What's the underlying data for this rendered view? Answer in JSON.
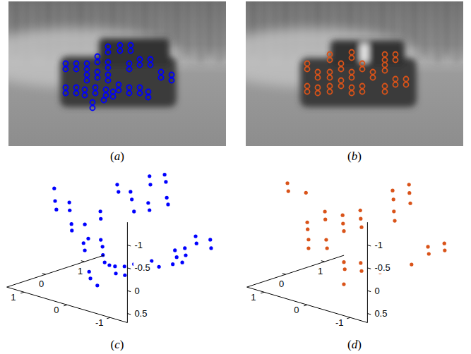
{
  "chart_data": [
    {
      "type": "image",
      "title": "(a)",
      "color": "#0000ff",
      "marker": "ring",
      "xlim": [
        0,
        308
      ],
      "ylim": [
        0,
        205
      ],
      "x": [
        81,
        81,
        81,
        81,
        96,
        96,
        96,
        96,
        111,
        111,
        111,
        111,
        108,
        108,
        126,
        126,
        126,
        126,
        123,
        123,
        119,
        119,
        141,
        141,
        141,
        141,
        141,
        141,
        138,
        138,
        135,
        158,
        158,
        156,
        156,
        173,
        173,
        171,
        171,
        171,
        171,
        186,
        186,
        186,
        186,
        201,
        201,
        198,
        198,
        216,
        216,
        231,
        231,
        148,
        148
      ],
      "y": [
        88,
        96,
        122,
        130,
        88,
        96,
        122,
        130,
        88,
        96,
        104,
        112,
        125,
        133,
        78,
        86,
        100,
        108,
        122,
        130,
        143,
        151,
        64,
        72,
        86,
        94,
        104,
        112,
        125,
        133,
        140,
        62,
        70,
        118,
        126,
        62,
        70,
        122,
        130,
        88,
        96,
        82,
        90,
        122,
        130,
        82,
        90,
        128,
        136,
        100,
        108,
        104,
        112,
        128,
        135
      ]
    },
    {
      "type": "image",
      "title": "(b)",
      "color": "#d95319",
      "marker": "ring",
      "xlim": [
        0,
        308
      ],
      "ylim": [
        0,
        205
      ],
      "x": [
        87,
        87,
        87,
        87,
        102,
        102,
        102,
        102,
        119,
        119,
        119,
        119,
        119,
        119,
        135,
        135,
        135,
        135,
        150,
        150,
        150,
        150,
        150,
        150,
        165,
        165,
        165,
        165,
        180,
        180,
        197,
        197,
        197,
        197,
        197,
        197,
        212,
        212,
        212,
        212,
        227,
        227
      ],
      "y": [
        88,
        96,
        120,
        128,
        100,
        108,
        122,
        130,
        75,
        83,
        100,
        108,
        120,
        128,
        88,
        96,
        112,
        120,
        72,
        80,
        100,
        108,
        122,
        130,
        88,
        96,
        120,
        128,
        100,
        108,
        75,
        83,
        90,
        98,
        120,
        128,
        75,
        83,
        110,
        118,
        110,
        118
      ]
    },
    {
      "type": "scatter3d",
      "title": "(c)",
      "color": "#0000ff",
      "marker": "dot",
      "xlim": [
        -1.4,
        1.4
      ],
      "ylim": [
        -1,
        1.5
      ],
      "zlim": [
        -1.5,
        0.7
      ],
      "xticks": [
        1,
        0,
        -1
      ],
      "yticks": [
        0,
        1
      ],
      "zticks": [
        -1,
        -0.5,
        0,
        0.5
      ],
      "x": [
        1.2,
        1.18,
        1.15,
        0.85,
        0.84,
        0.8,
        0.79,
        0.49,
        0.52,
        0.49,
        0.41,
        0.36,
        0.39,
        0.58,
        0.57,
        0.57,
        0.53,
        0.52,
        0.48,
        0.2,
        0.24,
        0.22,
        0.37,
        0.02,
        0.01,
        -0.2,
        0.64,
        0.61,
        0.33,
        0.3,
        0.25,
        0.34,
        0.32,
        -0.08,
        -0.11,
        -0.01,
        -0.04,
        -0.06,
        -0.09,
        -0.16,
        -0.33,
        -0.25,
        -0.29,
        -0.48,
        -0.5,
        -0.73,
        -0.75,
        -1.07,
        -1.09,
        -0.2,
        -0.42
      ],
      "y": [
        0,
        0,
        0,
        0,
        0,
        0,
        0,
        0,
        0,
        0,
        0,
        0,
        0,
        0.5,
        0.5,
        0.5,
        0.5,
        0.5,
        0.5,
        0,
        0.5,
        0.5,
        0.5,
        0.5,
        0.5,
        0.5,
        1,
        1,
        1,
        1,
        1,
        1.5,
        1.5,
        1,
        1,
        1.5,
        1.5,
        1.5,
        1.5,
        1,
        1,
        1.5,
        1.5,
        1.5,
        1.5,
        1.5,
        1.5,
        1.5,
        1.5,
        1.5,
        1.5
      ],
      "z": [
        -1.24,
        -0.97,
        -0.79,
        -1.03,
        -0.86,
        -0.57,
        -0.43,
        -0.65,
        -0.23,
        -0.08,
        -0.36,
        0.5,
        0.36,
        -0.77,
        -0.61,
        -0.15,
        -0.01,
        0.17,
        0.32,
        0.61,
        0.34,
        0.49,
        0.35,
        0.28,
        0.47,
        0.17,
        -1.2,
        -1.05,
        -1.13,
        -0.97,
        -0.72,
        -1.33,
        -1.15,
        -1,
        -0.85,
        -1.46,
        -1.31,
        -0.97,
        -0.83,
        0.25,
        0.33,
        0.13,
        0.27,
        0.02,
        0.17,
        -0.31,
        -0.16,
        -0.33,
        -0.15,
        0.45,
        0.35
      ]
    },
    {
      "type": "scatter3d",
      "title": "(d)",
      "color": "#d95319",
      "marker": "dot",
      "xlim": [
        -1.4,
        1.4
      ],
      "ylim": [
        -1,
        1.5
      ],
      "zlim": [
        -1.5,
        0.7
      ],
      "xticks": [
        1,
        0,
        -1
      ],
      "yticks": [
        0,
        1
      ],
      "zticks": [
        -1,
        -0.5,
        0,
        0.5
      ],
      "x": [
        1.36,
        1.34,
        0.93,
        0.9,
        0.89,
        0.87,
        0.87,
        0.49,
        0.48,
        0.46,
        0.44,
        0.53,
        0.52,
        0.5,
        0.12,
        0.11,
        0.09,
        0.5,
        0.48,
        0.05,
        0.11,
        0.09,
        -0.32,
        -0.34,
        -0.18,
        -0.2,
        -0.21,
        -0.23,
        -0.11,
        -0.12,
        -0.14,
        -0.62,
        -0.55,
        -0.57,
        -0.93,
        -0.94
      ],
      "y": [
        0,
        0,
        0,
        0,
        0,
        0,
        0,
        0,
        0,
        0,
        0,
        0.5,
        0.5,
        0.5,
        0.5,
        0.5,
        0.5,
        0.5,
        0.5,
        0,
        0.5,
        0.5,
        0.5,
        0.5,
        1,
        1,
        1,
        1,
        1.5,
        1.5,
        1.5,
        1,
        1.5,
        1.5,
        1.5,
        1.5
      ],
      "z": [
        -1.31,
        -1.14,
        -1.22,
        -0.58,
        -0.43,
        -0.21,
        -0.02,
        -0.93,
        -0.76,
        -0.32,
        -0.14,
        -0.7,
        -0.52,
        -0.36,
        -0.92,
        -0.74,
        -0.56,
        0.32,
        0.47,
        0.54,
        0.23,
        0.4,
        0.14,
        0.31,
        -1.3,
        -1.11,
        -0.85,
        -0.65,
        -1.27,
        -1.09,
        -0.87,
        0.2,
        -0.03,
        0.12,
        -0.21,
        -0.06
      ]
    }
  ]
}
